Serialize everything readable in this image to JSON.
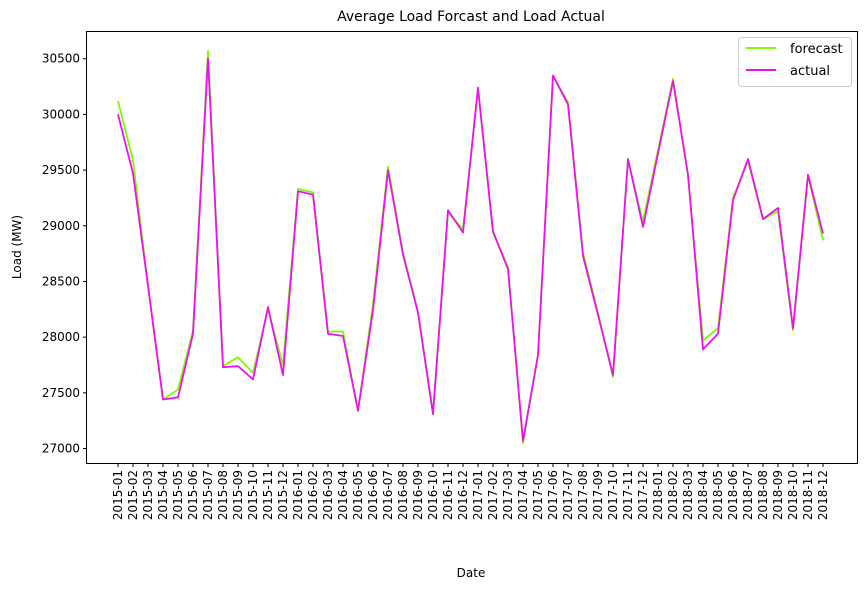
{
  "chart_data": {
    "type": "line",
    "title": "Average Load Forcast and Load Actual",
    "xlabel": "Date",
    "ylabel": "Load (MW)",
    "categories": [
      "2015-01",
      "2015-02",
      "2015-03",
      "2015-04",
      "2015-05",
      "2015-06",
      "2015-07",
      "2015-08",
      "2015-09",
      "2015-10",
      "2015-11",
      "2015-12",
      "2016-01",
      "2016-02",
      "2016-03",
      "2016-04",
      "2016-05",
      "2016-06",
      "2016-07",
      "2016-08",
      "2016-09",
      "2016-10",
      "2016-11",
      "2016-12",
      "2017-01",
      "2017-02",
      "2017-03",
      "2017-04",
      "2017-05",
      "2017-06",
      "2017-07",
      "2017-08",
      "2017-09",
      "2017-10",
      "2017-11",
      "2017-12",
      "2018-01",
      "2018-02",
      "2018-03",
      "2018-04",
      "2018-05",
      "2018-06",
      "2018-07",
      "2018-08",
      "2018-09",
      "2018-10",
      "2018-11",
      "2018-12"
    ],
    "ylim": [
      26870,
      30740
    ],
    "yticks": [
      27000,
      27500,
      28000,
      28500,
      29000,
      29500,
      30000,
      30500
    ],
    "grid": false,
    "legend_position": "top-right",
    "series": [
      {
        "name": "forecast",
        "color": "#7cfc00",
        "values": [
          30120,
          29590,
          28460,
          27440,
          27530,
          28060,
          30570,
          27740,
          27820,
          27680,
          28250,
          27750,
          29330,
          29300,
          28050,
          28050,
          27340,
          28300,
          29530,
          28760,
          28230,
          27310,
          29120,
          28970,
          30230,
          28940,
          28630,
          27050,
          27840,
          30340,
          30110,
          28760,
          28220,
          27640,
          29590,
          29040,
          29680,
          30320,
          29450,
          27970,
          28080,
          29250,
          29580,
          29060,
          29130,
          28060,
          29450,
          28870
        ]
      },
      {
        "name": "actual",
        "color": "#ee11ee",
        "values": [
          30000,
          29470,
          28460,
          27440,
          27460,
          28030,
          30500,
          27730,
          27740,
          27620,
          28270,
          27660,
          29310,
          29280,
          28030,
          28010,
          27340,
          28240,
          29500,
          28740,
          28220,
          27310,
          29140,
          28940,
          30240,
          28950,
          28610,
          27070,
          27840,
          30350,
          30090,
          28730,
          28200,
          27660,
          29600,
          28990,
          29650,
          30300,
          29460,
          27890,
          28030,
          29230,
          29600,
          29060,
          29160,
          28080,
          29460,
          28930
        ]
      }
    ]
  }
}
